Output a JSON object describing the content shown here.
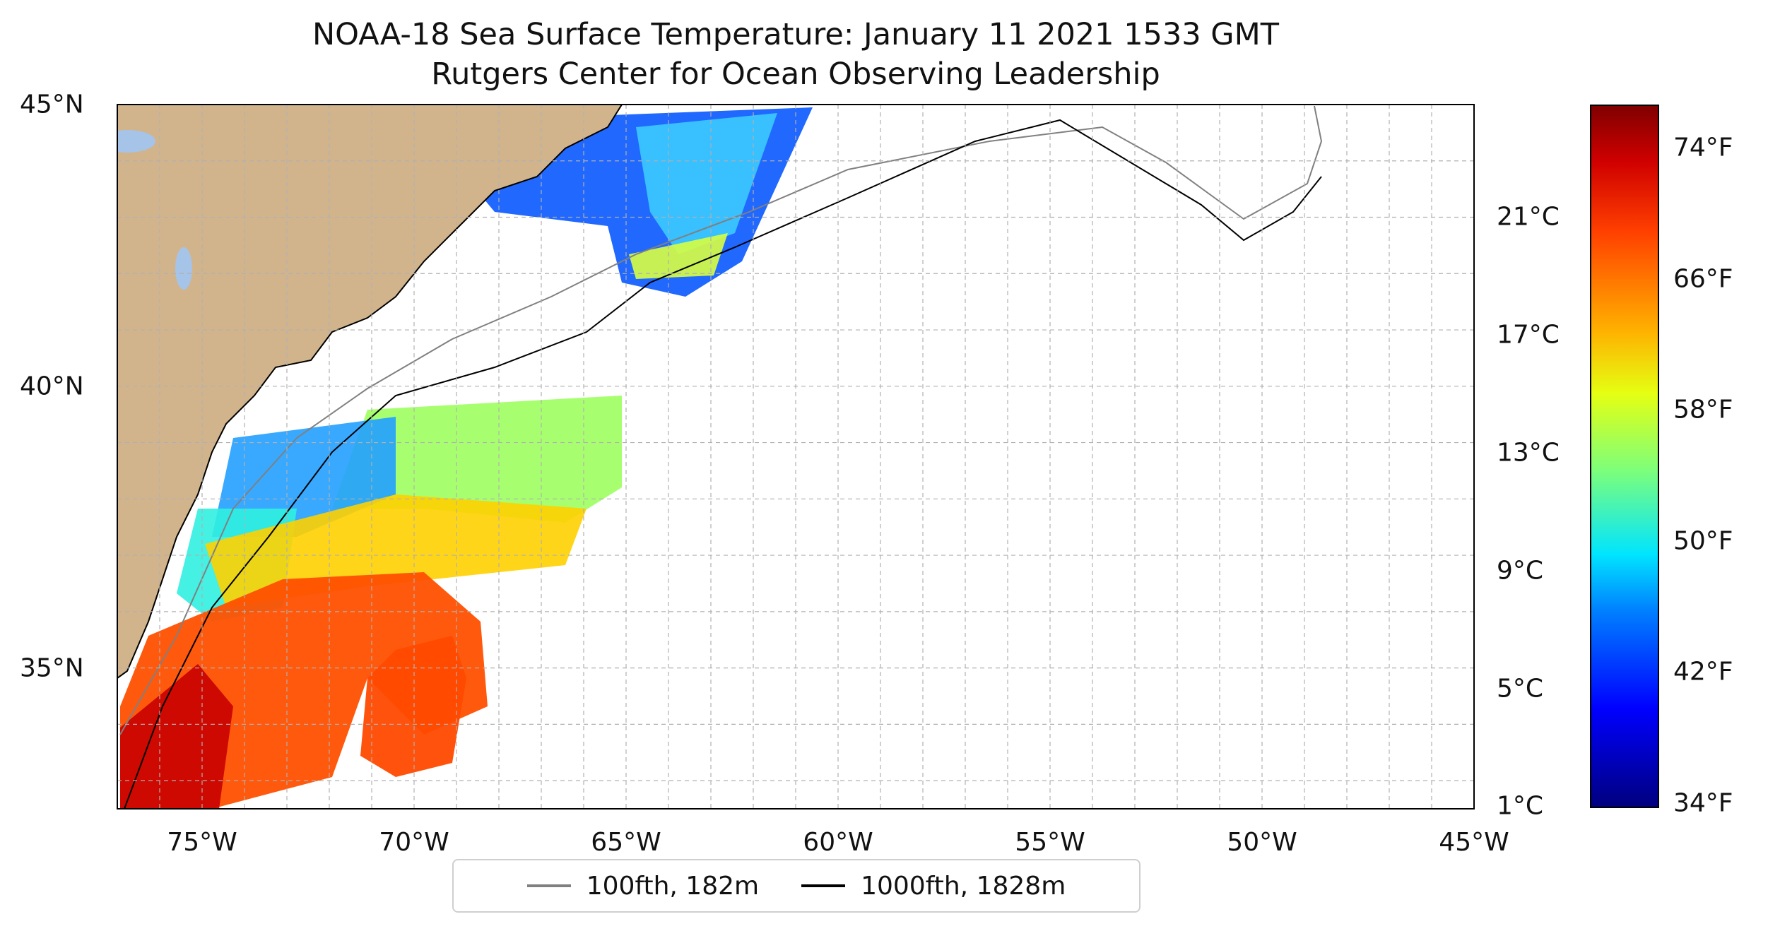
{
  "title": {
    "line1": "NOAA-18 Sea Surface Temperature: January 11 2021 1533 GMT",
    "line2": "Rutgers Center for Ocean Observing Leadership"
  },
  "map": {
    "lon_range": [
      -77,
      -45
    ],
    "lat_range": [
      32.5,
      45
    ],
    "x_ticks": [
      "75°W",
      "70°W",
      "65°W",
      "60°W",
      "55°W",
      "50°W",
      "45°W"
    ],
    "y_ticks": [
      "35°N",
      "40°N",
      "45°N"
    ],
    "land_color": "#d2b48c",
    "lake_color": "#a6c3e8",
    "isobath_100_color": "#808080",
    "isobath_1000_color": "#000000",
    "gridlines": "dashed"
  },
  "legend": {
    "items": [
      {
        "label": "100fth, 182m",
        "color": "#808080"
      },
      {
        "label": "1000fth, 1828m",
        "color": "#000000"
      }
    ]
  },
  "colorbar": {
    "celsius_ticks": [
      "1°C",
      "5°C",
      "9°C",
      "13°C",
      "17°C",
      "21°C"
    ],
    "fahrenheit_ticks": [
      "34°F",
      "42°F",
      "50°F",
      "58°F",
      "66°F",
      "74°F"
    ],
    "colormap": "jet"
  }
}
